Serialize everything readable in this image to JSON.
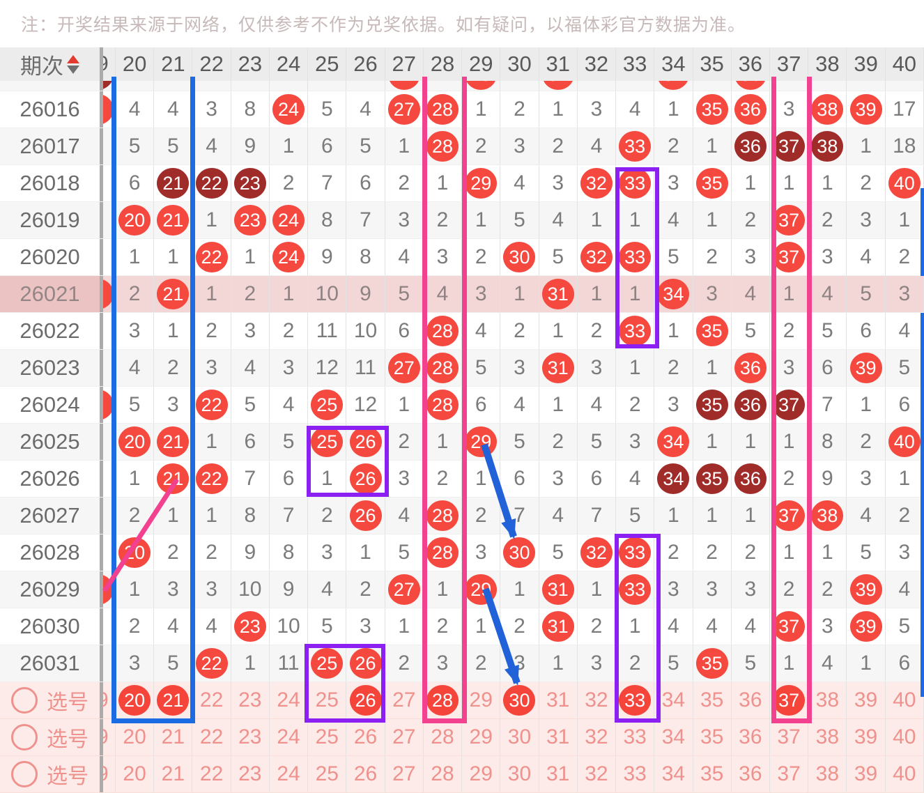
{
  "note": "注：开奖结果来源于网络，仅供参考不作为兑奖依据。如有疑问，以福体彩官方数据为准。",
  "colors": {
    "drawn_ball_red": "#f5493f",
    "drawn_ball_dark_red": "#a02c2a",
    "highlight_row_pink": "#f3d7d7",
    "selection_row_bg": "#fcebe8",
    "selection_text_pink": "#ef918d",
    "annotation_blue": "#1c6be2",
    "annotation_pink": "#f2418f",
    "annotation_purple": "#8c1ff2",
    "arrow_blue": "#2262d9",
    "header_bg": "#ececec"
  },
  "table": {
    "issue_header": "期次",
    "partial_column_digit": "9",
    "columns": [
      "20",
      "21",
      "22",
      "23",
      "24",
      "25",
      "26",
      "27",
      "28",
      "29",
      "30",
      "31",
      "32",
      "33",
      "34",
      "35",
      "36",
      "37",
      "38",
      "39",
      "40"
    ],
    "top_partial_row": {
      "red_arcs": [
        "27",
        "29",
        "31",
        "34",
        "36"
      ],
      "stub_arc": "dark"
    },
    "rows": [
      {
        "issue": "26016",
        "highlight": false,
        "partial19": true,
        "cells": [
          "4",
          "4",
          "3",
          "8",
          "R24",
          "5",
          "4",
          "R27",
          "R28",
          "1",
          "2",
          "1",
          "3",
          "4",
          "1",
          "R35",
          "R36",
          "3",
          "R38",
          "R39",
          "17"
        ]
      },
      {
        "issue": "26017",
        "highlight": false,
        "partial19": false,
        "cells": [
          "5",
          "5",
          "4",
          "9",
          "1",
          "6",
          "5",
          "1",
          "R28",
          "2",
          "3",
          "2",
          "4",
          "R33",
          "2",
          "1",
          "D36",
          "D37",
          "D38",
          "1",
          "18"
        ]
      },
      {
        "issue": "26018",
        "highlight": false,
        "partial19": false,
        "cells": [
          "6",
          "D21",
          "D22",
          "D23",
          "2",
          "7",
          "6",
          "2",
          "1",
          "R29",
          "4",
          "3",
          "R32",
          "R33",
          "3",
          "R35",
          "1",
          "1",
          "1",
          "2",
          "R40"
        ]
      },
      {
        "issue": "26019",
        "highlight": false,
        "partial19": false,
        "cells": [
          "R20",
          "R21",
          "1",
          "R23",
          "R24",
          "8",
          "7",
          "3",
          "2",
          "1",
          "5",
          "4",
          "1",
          "1",
          "4",
          "1",
          "2",
          "R37",
          "2",
          "3",
          "1"
        ]
      },
      {
        "issue": "26020",
        "highlight": false,
        "partial19": false,
        "cells": [
          "1",
          "1",
          "R22",
          "1",
          "R24",
          "9",
          "8",
          "4",
          "3",
          "2",
          "R30",
          "5",
          "R32",
          "R33",
          "5",
          "2",
          "3",
          "R37",
          "3",
          "4",
          "2"
        ]
      },
      {
        "issue": "26021",
        "highlight": true,
        "partial19": true,
        "cells": [
          "2",
          "R21",
          "1",
          "2",
          "1",
          "10",
          "9",
          "5",
          "4",
          "3",
          "1",
          "R31",
          "1",
          "1",
          "R34",
          "3",
          "4",
          "1",
          "4",
          "5",
          "3"
        ]
      },
      {
        "issue": "26022",
        "highlight": false,
        "partial19": false,
        "cells": [
          "3",
          "1",
          "2",
          "3",
          "2",
          "11",
          "10",
          "6",
          "R28",
          "4",
          "2",
          "1",
          "2",
          "R33",
          "1",
          "R35",
          "5",
          "2",
          "5",
          "6",
          "4"
        ]
      },
      {
        "issue": "26023",
        "highlight": false,
        "partial19": false,
        "cells": [
          "4",
          "2",
          "3",
          "4",
          "3",
          "12",
          "11",
          "R27",
          "R28",
          "5",
          "3",
          "R31",
          "3",
          "1",
          "2",
          "1",
          "R36",
          "3",
          "6",
          "R39",
          "5"
        ]
      },
      {
        "issue": "26024",
        "highlight": false,
        "partial19": true,
        "cells": [
          "5",
          "3",
          "R22",
          "5",
          "4",
          "R25",
          "12",
          "1",
          "R28",
          "6",
          "4",
          "1",
          "4",
          "2",
          "3",
          "D35",
          "D36",
          "D37",
          "7",
          "1",
          "6"
        ]
      },
      {
        "issue": "26025",
        "highlight": false,
        "partial19": false,
        "cells": [
          "R20",
          "R21",
          "1",
          "6",
          "5",
          "R25",
          "R26",
          "2",
          "1",
          "R29",
          "5",
          "2",
          "5",
          "3",
          "R34",
          "1",
          "1",
          "1",
          "8",
          "2",
          "R40"
        ]
      },
      {
        "issue": "26026",
        "highlight": false,
        "partial19": false,
        "cells": [
          "1",
          "R21",
          "R22",
          "7",
          "6",
          "1",
          "R26",
          "3",
          "2",
          "1",
          "6",
          "3",
          "6",
          "4",
          "D34",
          "D35",
          "D36",
          "2",
          "9",
          "3",
          "1"
        ]
      },
      {
        "issue": "26027",
        "highlight": false,
        "partial19": false,
        "cells": [
          "2",
          "1",
          "1",
          "8",
          "7",
          "2",
          "R26",
          "4",
          "R28",
          "2",
          "7",
          "4",
          "7",
          "5",
          "1",
          "1",
          "1",
          "R37",
          "R38",
          "4",
          "2"
        ]
      },
      {
        "issue": "26028",
        "highlight": false,
        "partial19": false,
        "cells": [
          "R20",
          "2",
          "2",
          "9",
          "8",
          "3",
          "1",
          "5",
          "R28",
          "3",
          "R30",
          "5",
          "R32",
          "R33",
          "2",
          "2",
          "2",
          "1",
          "1",
          "5",
          "3"
        ]
      },
      {
        "issue": "26029",
        "highlight": false,
        "partial19": true,
        "cells": [
          "1",
          "3",
          "3",
          "10",
          "9",
          "4",
          "2",
          "R27",
          "1",
          "R29",
          "1",
          "R31",
          "1",
          "R33",
          "3",
          "3",
          "3",
          "2",
          "2",
          "R39",
          "4"
        ]
      },
      {
        "issue": "26030",
        "highlight": false,
        "partial19": false,
        "cells": [
          "2",
          "4",
          "4",
          "R23",
          "10",
          "5",
          "3",
          "1",
          "2",
          "1",
          "2",
          "R31",
          "2",
          "1",
          "4",
          "4",
          "4",
          "R37",
          "3",
          "R39",
          "5"
        ]
      },
      {
        "issue": "26031",
        "highlight": false,
        "partial19": false,
        "cells": [
          "3",
          "5",
          "R22",
          "1",
          "11",
          "R25",
          "R26",
          "2",
          "3",
          "2",
          "3",
          "1",
          "3",
          "2",
          "5",
          "R35",
          "5",
          "1",
          "4",
          "1",
          "6"
        ]
      }
    ],
    "selection_rows": [
      {
        "label": "选号",
        "picked": [
          "20",
          "21",
          "26",
          "28",
          "30",
          "33",
          "37"
        ]
      },
      {
        "label": "选号",
        "picked": []
      },
      {
        "label": "选号",
        "picked": []
      }
    ]
  },
  "annotations": {
    "blue_box_columns": "20-21",
    "pink_box_columns": [
      "28",
      "37"
    ],
    "purple_boxes": [
      "33 · 26018-26022",
      "25-26 · 26025-26026",
      "33 · 26028-选号",
      "25-26 · 26031-选号"
    ],
    "blue_arrows": [
      "29(26025)→30(26028)",
      "29(26029)→30(选号)"
    ],
    "pink_line": "21(26026)→19(26029)"
  }
}
